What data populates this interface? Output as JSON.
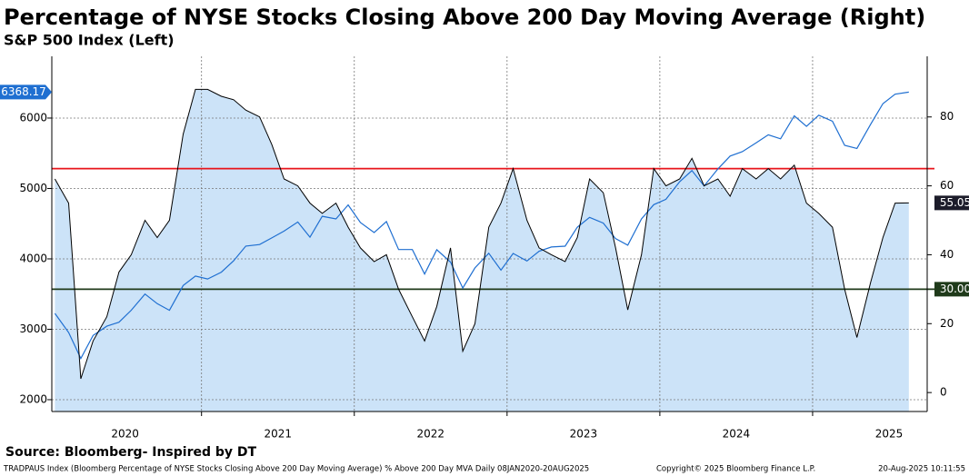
{
  "chart_data": {
    "type": "line",
    "x": [
      2020.04,
      2020.13,
      2020.21,
      2020.29,
      2020.38,
      2020.46,
      2020.54,
      2020.63,
      2020.71,
      2020.79,
      2020.88,
      2020.96,
      2021.04,
      2021.13,
      2021.21,
      2021.29,
      2021.38,
      2021.46,
      2021.54,
      2021.63,
      2021.71,
      2021.79,
      2021.88,
      2021.96,
      2022.04,
      2022.13,
      2022.21,
      2022.29,
      2022.38,
      2022.46,
      2022.54,
      2022.63,
      2022.71,
      2022.79,
      2022.88,
      2022.96,
      2023.04,
      2023.13,
      2023.21,
      2023.29,
      2023.38,
      2023.46,
      2023.54,
      2023.63,
      2023.71,
      2023.79,
      2023.88,
      2023.96,
      2024.04,
      2024.13,
      2024.21,
      2024.29,
      2024.38,
      2024.46,
      2024.54,
      2024.63,
      2024.71,
      2024.79,
      2024.88,
      2024.96,
      2025.04,
      2025.13,
      2025.21,
      2025.29,
      2025.38,
      2025.46,
      2025.54,
      2025.63
    ],
    "xlim": [
      2020.02,
      2025.75
    ],
    "xticks": [
      {
        "value": 2020.5,
        "label": "2020"
      },
      {
        "value": 2021.5,
        "label": "2021"
      },
      {
        "value": 2022.5,
        "label": "2022"
      },
      {
        "value": 2023.5,
        "label": "2023"
      },
      {
        "value": 2024.5,
        "label": "2024"
      },
      {
        "value": 2025.5,
        "label": "2025"
      }
    ],
    "xgrid": [
      2021,
      2022,
      2023,
      2024,
      2025
    ],
    "ylim": [
      1832,
      6877
    ],
    "yticks": [
      2000,
      3000,
      4000,
      5000,
      6000
    ],
    "y2lim": [
      -5.5,
      97.6
    ],
    "y2ticks": [
      0,
      20,
      40,
      60,
      80
    ],
    "hlines": [
      {
        "value": 65,
        "color": "#e8141b"
      },
      {
        "value": 30,
        "label": "30.00",
        "color": "#1f3a1a"
      }
    ],
    "series": [
      {
        "name": "S&P 500 Index (Left)",
        "color": "#1f6fd1",
        "values": [
          3225,
          2954,
          2585,
          2912,
          3044,
          3100,
          3271,
          3500,
          3363,
          3270,
          3622,
          3756,
          3714,
          3811,
          3973,
          4181,
          4204,
          4298,
          4395,
          4523,
          4308,
          4605,
          4567,
          4766,
          4516,
          4374,
          4530,
          4132,
          4132,
          3785,
          4130,
          3955,
          3586,
          3872,
          4080,
          3840,
          4077,
          3970,
          4109,
          4169,
          4180,
          4450,
          4589,
          4508,
          4288,
          4194,
          4568,
          4770,
          4846,
          5096,
          5254,
          5036,
          5278,
          5460,
          5522,
          5648,
          5762,
          5705,
          6032,
          5882,
          6041,
          5955,
          5612,
          5569,
          5912,
          6205,
          6339,
          6368.17
        ]
      },
      {
        "name": "Percentage of NYSE Stocks Closing Above 200 Day Moving Average (Right)",
        "axis": "y2",
        "color": "#000000",
        "fill": "#cce3f8",
        "values": [
          62,
          55,
          4,
          15,
          22,
          35,
          40,
          50,
          45,
          50,
          75,
          88,
          88,
          86,
          85,
          82,
          80,
          72,
          62,
          60,
          55,
          52,
          55,
          48,
          42,
          38,
          40,
          30,
          22,
          15,
          25,
          42,
          12,
          20,
          48,
          55,
          65,
          50,
          42,
          40,
          38,
          45,
          62,
          58,
          42,
          24,
          40,
          65,
          60,
          62,
          68,
          60,
          62,
          57,
          65,
          62,
          65,
          62,
          66,
          55,
          52,
          48,
          30,
          16,
          32,
          45,
          55,
          55.05
        ]
      }
    ]
  },
  "source": "Source: Bloomberg- Inspired by DT",
  "footer": {
    "description": "TRADPAUS Index (Bloomberg Percentage of NYSE Stocks Closing Above 200 Day Moving Average) % Above 200 Day MVA  Daily 08JAN2020-20AUG2025",
    "copyright": "Copyright© 2025 Bloomberg Finance L.P.",
    "timestamp": "20-Aug-2025 10:11:55"
  }
}
